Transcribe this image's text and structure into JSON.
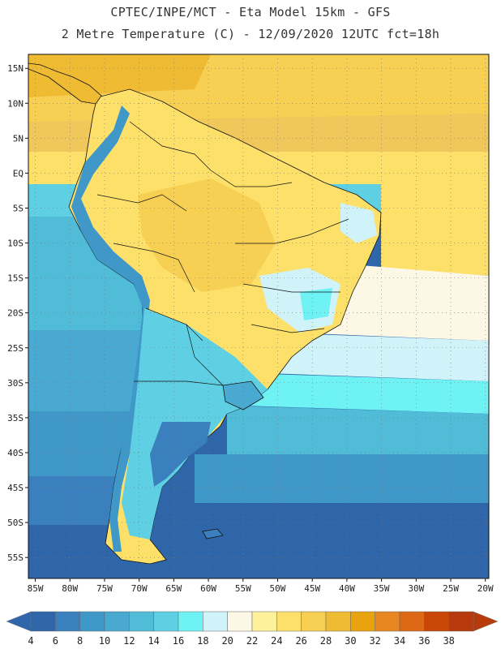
{
  "header": {
    "line1": "CPTEC/INPE/MCT -  Eta Model 15km - GFS",
    "line2": "2 Metre Temperature (C) - 12/09/2020 12UTC fct=18h"
  },
  "map": {
    "lat_labels": [
      "15N",
      "10N",
      "5N",
      "EQ",
      "5S",
      "10S",
      "15S",
      "20S",
      "25S",
      "30S",
      "35S",
      "40S",
      "45S",
      "50S",
      "55S"
    ],
    "lon_labels": [
      "85W",
      "80W",
      "75W",
      "70W",
      "65W",
      "60W",
      "55W",
      "50W",
      "45W",
      "40W",
      "35W",
      "30W",
      "25W",
      "20W"
    ],
    "lon_range": [
      -86,
      -19.5
    ],
    "lat_range": [
      17,
      -58
    ],
    "grid": "dotted"
  },
  "colorbar": {
    "labels": [
      "4",
      "6",
      "8",
      "10",
      "12",
      "14",
      "16",
      "18",
      "20",
      "22",
      "24",
      "26",
      "28",
      "30",
      "32",
      "34",
      "36",
      "38"
    ],
    "colors": [
      "#2f66a9",
      "#3a80bf",
      "#3f98c8",
      "#4aa9d0",
      "#50bcd8",
      "#5fd0e3",
      "#6ef2f4",
      "#cff3f9",
      "#fdf7e6",
      "#fdf19a",
      "#fde06a",
      "#f6cf53",
      "#efbb33",
      "#e9a30e",
      "#e8871f",
      "#dd6815",
      "#c84606",
      "#b63a0c"
    ]
  },
  "icons": {
    "left_arrow": "colorbar-left-arrow-icon",
    "right_arrow": "colorbar-right-arrow-icon"
  }
}
